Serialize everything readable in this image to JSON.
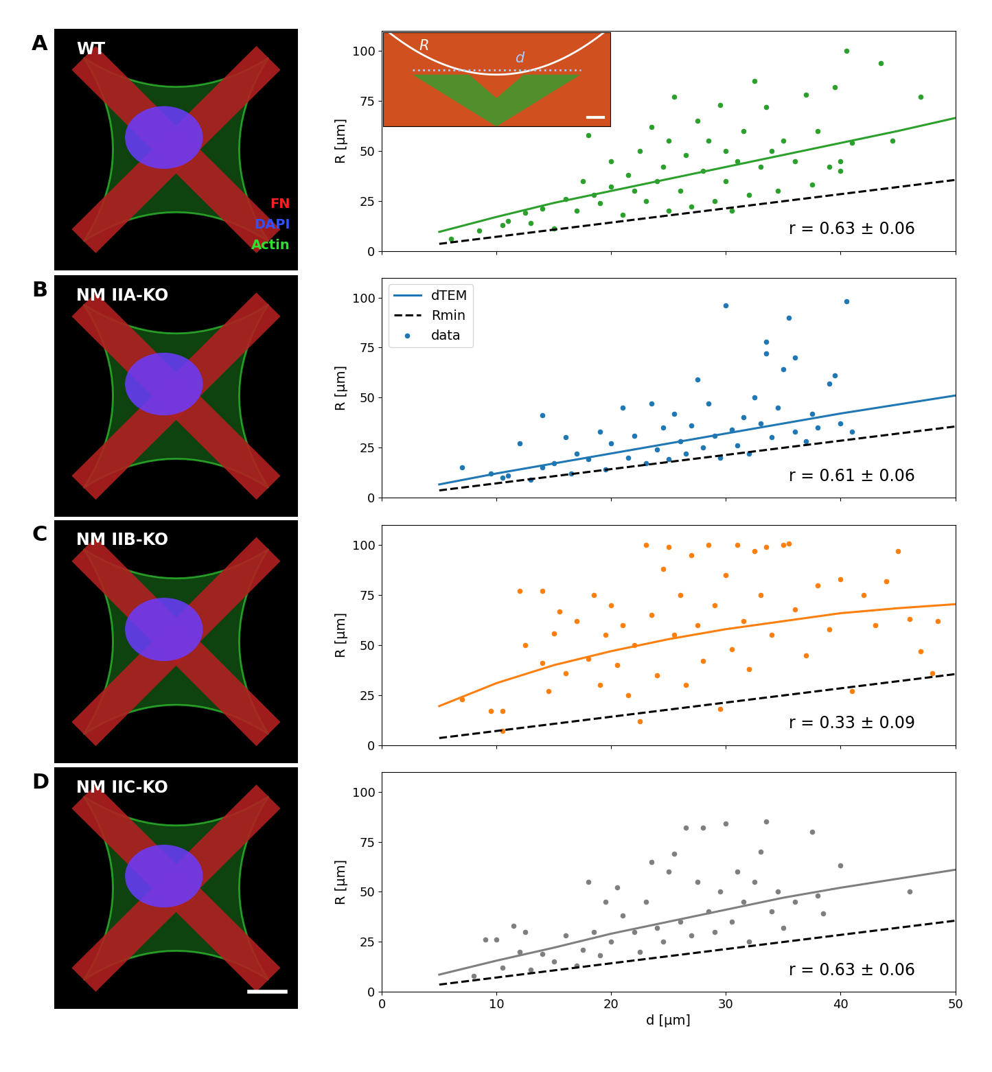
{
  "chart_data": [
    {
      "type": "scatter",
      "panel": "A",
      "ylabel": "R [μm]",
      "annotation": "r = 0.63 ± 0.06",
      "xlim": [
        0,
        50
      ],
      "xticks": [
        0,
        10,
        20,
        30,
        40,
        50
      ],
      "ylim": [
        0,
        110
      ],
      "yticks": [
        0,
        25,
        50,
        75,
        100
      ],
      "tick_labels": "y",
      "series": [
        {
          "type": "scatter",
          "color": "#2ca02c",
          "x": [
            6,
            8.5,
            10.5,
            11,
            12.5,
            13,
            14,
            15,
            16,
            17,
            17.5,
            18,
            18.5,
            19,
            20,
            20,
            21,
            21.5,
            22,
            22.5,
            23,
            23.5,
            24,
            24.5,
            25,
            25,
            25.5,
            26,
            26.5,
            27,
            27.5,
            28,
            28.5,
            29,
            29.5,
            30,
            30,
            30.5,
            31,
            31.5,
            32,
            32.5,
            33,
            33.5,
            34,
            34.5,
            35,
            36,
            37,
            37.5,
            38,
            39,
            39.5,
            40,
            40.5,
            41,
            43.5,
            44.5,
            47,
            40
          ],
          "values": [
            6,
            10,
            13,
            15,
            19,
            14,
            21,
            11,
            26,
            20,
            35,
            58,
            28,
            24,
            32,
            45,
            18,
            38,
            30,
            50,
            25,
            62,
            35,
            42,
            20,
            55,
            77,
            30,
            48,
            22,
            65,
            40,
            55,
            25,
            73,
            35,
            50,
            20,
            45,
            60,
            28,
            85,
            42,
            72,
            50,
            30,
            55,
            45,
            78,
            33,
            60,
            42,
            82,
            45,
            100,
            54,
            94,
            55,
            77,
            40
          ]
        },
        {
          "type": "line",
          "color": "#2ca02c",
          "line_style": "solid",
          "x": [
            5,
            10,
            15,
            20,
            25,
            30,
            35,
            40,
            45,
            50
          ],
          "values": [
            9.5,
            17,
            24,
            30,
            36,
            42,
            48,
            54,
            60,
            66.5
          ]
        },
        {
          "type": "line",
          "color": "#000000",
          "line_style": "dashed",
          "x": [
            5,
            50
          ],
          "values": [
            3.5,
            35.5
          ]
        }
      ]
    },
    {
      "type": "scatter",
      "panel": "B",
      "ylabel": "R [μm]",
      "annotation": "r = 0.61 ± 0.06",
      "legend": "upper left",
      "xlim": [
        0,
        50
      ],
      "xticks": [
        0,
        10,
        20,
        30,
        40,
        50
      ],
      "ylim": [
        0,
        110
      ],
      "yticks": [
        0,
        25,
        50,
        75,
        100
      ],
      "tick_labels": "y",
      "series": [
        {
          "type": "scatter",
          "name": "data",
          "color": "#1f77b4",
          "x": [
            7,
            9.5,
            10.5,
            11,
            12,
            13,
            14,
            14,
            15,
            16,
            16.5,
            17,
            18,
            19,
            19.5,
            20,
            21,
            21.5,
            22,
            23,
            23.5,
            24,
            24.5,
            25,
            25.5,
            26,
            26.5,
            27,
            27.5,
            28,
            28.5,
            29,
            29.5,
            30,
            30.5,
            31,
            31.5,
            32,
            32.5,
            33,
            33.5,
            33.5,
            34,
            34.5,
            35,
            35.5,
            36,
            36,
            37,
            37.5,
            38,
            39,
            39.5,
            40,
            40.5,
            41
          ],
          "values": [
            15,
            12,
            10,
            11,
            27,
            9,
            41,
            15,
            17,
            30,
            12,
            22,
            19,
            33,
            14,
            27,
            45,
            20,
            31,
            17,
            47,
            24,
            35,
            19,
            42,
            28,
            22,
            36,
            59,
            25,
            47,
            31,
            20,
            96,
            34,
            26,
            40,
            22,
            50,
            37,
            78,
            72,
            30,
            45,
            64,
            90,
            70,
            33,
            28,
            42,
            35,
            57,
            61,
            37,
            98,
            33
          ]
        },
        {
          "type": "line",
          "name": "dTEM",
          "color": "#1f77b4",
          "line_style": "solid",
          "x": [
            5,
            10,
            15,
            20,
            25,
            30,
            35,
            40,
            45,
            50
          ],
          "values": [
            6.5,
            12,
            17,
            22,
            27,
            32,
            37,
            42,
            46.5,
            51
          ]
        },
        {
          "type": "line",
          "name": "Rmin",
          "color": "#000000",
          "line_style": "dashed",
          "x": [
            5,
            50
          ],
          "values": [
            3.5,
            35.5
          ]
        }
      ]
    },
    {
      "type": "scatter",
      "panel": "C",
      "ylabel": "R [μm]",
      "annotation": "r = 0.33 ± 0.09",
      "xlim": [
        0,
        50
      ],
      "xticks": [
        0,
        10,
        20,
        30,
        40,
        50
      ],
      "ylim": [
        0,
        110
      ],
      "yticks": [
        0,
        25,
        50,
        75,
        100
      ],
      "tick_labels": "y",
      "series": [
        {
          "type": "scatter",
          "color": "#ff7f0e",
          "x": [
            7,
            9.5,
            10.5,
            10.5,
            12,
            12.5,
            14,
            14,
            14.5,
            15,
            15.5,
            16,
            17,
            18,
            18.5,
            19,
            19.5,
            20,
            20.5,
            21,
            21.5,
            22,
            22.5,
            23,
            23.5,
            24,
            24.5,
            25,
            25.5,
            26,
            26.5,
            27,
            27.5,
            28,
            28.5,
            29,
            29.5,
            30,
            30.5,
            31,
            31.5,
            32,
            32.5,
            33,
            33.5,
            34,
            35,
            35.5,
            36,
            37,
            38,
            39,
            40,
            41,
            42,
            43,
            44,
            45,
            46,
            47,
            48,
            48.5
          ],
          "values": [
            23,
            17,
            17,
            7,
            77,
            50,
            77,
            41,
            27,
            56,
            67,
            36,
            62,
            43,
            75,
            30,
            55,
            70,
            40,
            60,
            25,
            50,
            12,
            100,
            65,
            35,
            88,
            99,
            55,
            75,
            30,
            95,
            60,
            42,
            100,
            70,
            18,
            85,
            48,
            100,
            62,
            38,
            97,
            75,
            99,
            55,
            100,
            101,
            68,
            45,
            80,
            58,
            83,
            27,
            75,
            60,
            82,
            97,
            63,
            47,
            36,
            62
          ]
        },
        {
          "type": "line",
          "color": "#ff7f0e",
          "line_style": "solid",
          "x": [
            5,
            10,
            15,
            20,
            25,
            30,
            35,
            40,
            45,
            50
          ],
          "values": [
            19.5,
            31,
            40,
            47,
            53,
            58,
            62,
            66,
            68.5,
            70.5
          ]
        },
        {
          "type": "line",
          "color": "#000000",
          "line_style": "dashed",
          "x": [
            5,
            50
          ],
          "values": [
            3.5,
            35.5
          ]
        }
      ]
    },
    {
      "type": "scatter",
      "panel": "D",
      "ylabel": "R [μm]",
      "xlabel": "d [μm]",
      "annotation": "r = 0.63 ± 0.06",
      "xlim": [
        0,
        50
      ],
      "xticks": [
        0,
        10,
        20,
        30,
        40,
        50
      ],
      "ylim": [
        0,
        110
      ],
      "yticks": [
        0,
        25,
        50,
        75,
        100
      ],
      "series": [
        {
          "type": "scatter",
          "color": "#7f7f7f",
          "x": [
            8,
            9,
            10,
            10.5,
            11.5,
            12,
            12.5,
            13,
            14,
            15,
            16,
            17,
            17.5,
            18,
            18.5,
            19,
            19.5,
            20,
            20.5,
            21,
            22,
            22.5,
            23,
            23.5,
            24,
            24.5,
            25,
            25.5,
            26,
            26.5,
            27,
            27.5,
            28,
            28.5,
            29,
            29.5,
            30,
            30.5,
            31,
            31.5,
            32,
            32.5,
            33,
            33.5,
            34,
            34.5,
            35,
            36,
            37.5,
            38,
            38.5,
            40,
            46
          ],
          "values": [
            8,
            26,
            26,
            12,
            33,
            20,
            30,
            11,
            19,
            15,
            28,
            13,
            21,
            55,
            30,
            18,
            45,
            25,
            52,
            38,
            30,
            20,
            45,
            65,
            32,
            25,
            60,
            69,
            35,
            82,
            28,
            55,
            82,
            40,
            30,
            50,
            84,
            35,
            60,
            45,
            25,
            55,
            70,
            85,
            40,
            50,
            32,
            45,
            80,
            48,
            39,
            63,
            50
          ]
        },
        {
          "type": "line",
          "color": "#7f7f7f",
          "line_style": "solid",
          "x": [
            5,
            10,
            15,
            20,
            25,
            30,
            35,
            40,
            45,
            50
          ],
          "values": [
            8.5,
            15.5,
            22,
            29,
            35,
            41,
            47,
            52,
            56.5,
            61
          ]
        },
        {
          "type": "line",
          "color": "#000000",
          "line_style": "dashed",
          "x": [
            5,
            50
          ],
          "values": [
            3.5,
            35.5
          ]
        }
      ]
    }
  ],
  "images": [
    {
      "panel": "A",
      "label": "WT"
    },
    {
      "panel": "B",
      "label": "NM IIA-KO"
    },
    {
      "panel": "C",
      "label": "NM IIB-KO"
    },
    {
      "panel": "D",
      "label": "NM IIC-KO"
    }
  ],
  "channels": [
    {
      "label": "FN",
      "color": "#ff2020"
    },
    {
      "label": "DAPI",
      "color": "#3050ff"
    },
    {
      "label": "Actin",
      "color": "#30e030"
    }
  ],
  "inset_labels": {
    "arc": "R",
    "chord": "d"
  }
}
